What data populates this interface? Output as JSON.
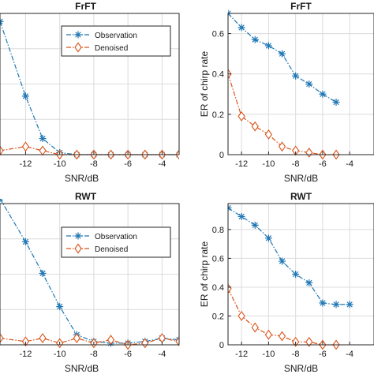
{
  "colors": {
    "observation": "#1f77b4",
    "denoised": "#d95319"
  },
  "chart_data": [
    {
      "id": "top-left",
      "type": "line",
      "title": "FrFT",
      "xlabel": "SNR/dB",
      "ylabel": "",
      "xlim": [
        -13.5,
        -3
      ],
      "ylim": [
        0,
        0.7
      ],
      "x_ticks": [
        -12,
        -10,
        -8,
        -6,
        -4
      ],
      "y_ticks": [],
      "grid": true,
      "legend": {
        "placement": "top-right"
      },
      "series": [
        {
          "name": "Observation",
          "key": "observation",
          "marker": "asterisk",
          "x": [
            -13.5,
            -12,
            -11,
            -10,
            -9,
            -8,
            -7,
            -6,
            -5,
            -4,
            -3
          ],
          "y": [
            0.66,
            0.29,
            0.08,
            0.01,
            0.0,
            0.0,
            0.0,
            0.0,
            0.0,
            0.0,
            0.0
          ]
        },
        {
          "name": "Denoised",
          "key": "denoised",
          "marker": "diamond",
          "x": [
            -13.5,
            -12,
            -11,
            -10,
            -9,
            -8,
            -7,
            -6,
            -5,
            -4,
            -3
          ],
          "y": [
            0.02,
            0.04,
            0.02,
            0.0,
            0.0,
            0.0,
            0.0,
            0.0,
            0.0,
            0.0,
            0.0
          ]
        }
      ]
    },
    {
      "id": "top-right",
      "type": "line",
      "title": "FrFT",
      "xlabel": "SNR/dB",
      "ylabel": "ER of chirp rate",
      "xlim": [
        -13,
        -2.2
      ],
      "ylim": [
        0,
        0.7
      ],
      "x_ticks": [
        -12,
        -10,
        -8,
        -6,
        -4
      ],
      "y_ticks": [
        0,
        0.2,
        0.4,
        0.6
      ],
      "grid": true,
      "legend": null,
      "series": [
        {
          "name": "Observation",
          "key": "observation",
          "marker": "asterisk",
          "x": [
            -13,
            -12,
            -11,
            -10,
            -9,
            -8,
            -7,
            -6,
            -5
          ],
          "y": [
            0.7,
            0.63,
            0.57,
            0.54,
            0.5,
            0.39,
            0.35,
            0.3,
            0.26
          ]
        },
        {
          "name": "Denoised",
          "key": "denoised",
          "marker": "diamond",
          "x": [
            -13,
            -12,
            -11,
            -10,
            -9,
            -8,
            -7,
            -6,
            -5
          ],
          "y": [
            0.4,
            0.19,
            0.14,
            0.1,
            0.04,
            0.02,
            0.01,
            0.0,
            0.0
          ]
        }
      ]
    },
    {
      "id": "bottom-left",
      "type": "line",
      "title": "RWT",
      "xlabel": "SNR/dB",
      "ylabel": "",
      "xlim": [
        -13.5,
        -3
      ],
      "ylim": [
        0,
        0.85
      ],
      "x_ticks": [
        -12,
        -10,
        -8,
        -6,
        -4
      ],
      "y_ticks": [],
      "grid": true,
      "legend": {
        "placement": "top-right"
      },
      "series": [
        {
          "name": "Observation",
          "key": "observation",
          "marker": "asterisk",
          "x": [
            -13.5,
            -12,
            -11,
            -10,
            -9,
            -8,
            -7,
            -6,
            -5,
            -4,
            -3
          ],
          "y": [
            0.88,
            0.62,
            0.43,
            0.23,
            0.06,
            0.02,
            0.01,
            0.01,
            0.02,
            0.04,
            0.03
          ]
        },
        {
          "name": "Denoised",
          "key": "denoised",
          "marker": "diamond",
          "x": [
            -13.5,
            -12,
            -11,
            -10,
            -9,
            -8,
            -7,
            -6,
            -5,
            -4,
            -3
          ],
          "y": [
            0.04,
            0.02,
            0.04,
            0.01,
            0.04,
            0.01,
            0.03,
            0.0,
            0.01,
            0.04,
            0.02
          ]
        }
      ]
    },
    {
      "id": "bottom-right",
      "type": "line",
      "title": "RWT",
      "xlabel": "SNR/dB",
      "ylabel": "ER of chirp rate",
      "xlim": [
        -13,
        -2.2
      ],
      "ylim": [
        0,
        0.98
      ],
      "x_ticks": [
        -12,
        -10,
        -8,
        -6,
        -4
      ],
      "y_ticks": [
        0,
        0.2,
        0.4,
        0.6,
        0.8
      ],
      "grid": true,
      "legend": null,
      "series": [
        {
          "name": "Observation",
          "key": "observation",
          "marker": "asterisk",
          "x": [
            -13,
            -12,
            -11,
            -10,
            -9,
            -8,
            -7,
            -6,
            -5,
            -4
          ],
          "y": [
            0.95,
            0.89,
            0.83,
            0.74,
            0.58,
            0.49,
            0.43,
            0.29,
            0.28,
            0.28
          ]
        },
        {
          "name": "Denoised",
          "key": "denoised",
          "marker": "diamond",
          "x": [
            -13,
            -12,
            -11,
            -10,
            -9,
            -8,
            -7,
            -6,
            -5
          ],
          "y": [
            0.39,
            0.2,
            0.12,
            0.07,
            0.06,
            0.02,
            0.02,
            0.0,
            0.0
          ]
        }
      ]
    }
  ]
}
